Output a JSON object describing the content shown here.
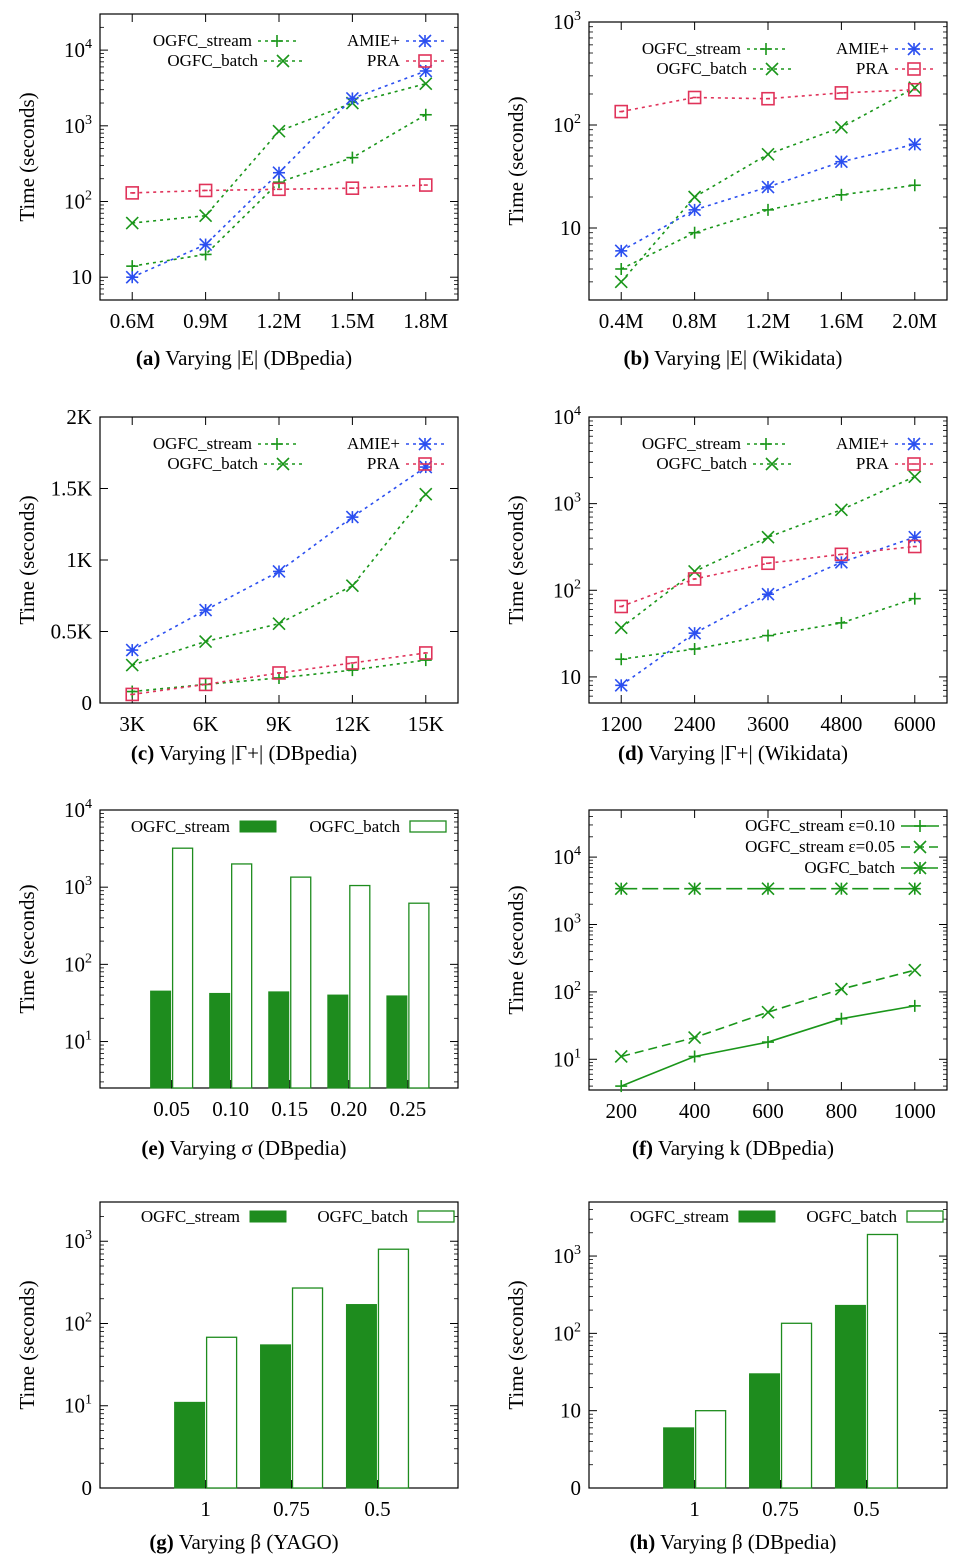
{
  "chart_data": [
    {
      "id": "a",
      "type": "line",
      "scale": "log",
      "ylabel": "Time (seconds)",
      "xlabel": "",
      "categories": [
        "0.6M",
        "0.9M",
        "1.2M",
        "1.5M",
        "1.8M"
      ],
      "yticks": [
        {
          "v": 10,
          "base": "10",
          "exp": ""
        },
        {
          "v": 100,
          "base": "10",
          "exp": "2"
        },
        {
          "v": 1000,
          "base": "10",
          "exp": "3"
        },
        {
          "v": 10000,
          "base": "10",
          "exp": "4"
        }
      ],
      "ylim": [
        5,
        30000
      ],
      "legend": [
        "OGFC_stream",
        "OGFC_batch",
        "AMIE+",
        "PRA"
      ],
      "series": [
        {
          "name": "OGFC_stream",
          "values": [
            14,
            20,
            180,
            380,
            1400
          ]
        },
        {
          "name": "OGFC_batch",
          "values": [
            52,
            65,
            850,
            2000,
            3600
          ]
        },
        {
          "name": "AMIE+",
          "values": [
            10,
            27,
            240,
            2300,
            5300
          ]
        },
        {
          "name": "PRA",
          "values": [
            130,
            140,
            145,
            150,
            165
          ]
        }
      ],
      "caption": {
        "tag": "(a)",
        "text": "Varying |E| (DBpedia)"
      }
    },
    {
      "id": "b",
      "type": "line",
      "scale": "log",
      "ylabel": "Time (seconds)",
      "xlabel": "",
      "categories": [
        "0.4M",
        "0.8M",
        "1.2M",
        "1.6M",
        "2.0M"
      ],
      "yticks": [
        {
          "v": 10,
          "base": "10",
          "exp": ""
        },
        {
          "v": 100,
          "base": "10",
          "exp": "2"
        },
        {
          "v": 1000,
          "base": "10",
          "exp": "3"
        }
      ],
      "ylim": [
        2,
        1000
      ],
      "legend": [
        "OGFC_stream",
        "OGFC_batch",
        "AMIE+",
        "PRA"
      ],
      "series": [
        {
          "name": "OGFC_stream",
          "values": [
            4,
            9,
            15,
            21,
            26
          ]
        },
        {
          "name": "OGFC_batch",
          "values": [
            3,
            20,
            52,
            95,
            230
          ]
        },
        {
          "name": "AMIE+",
          "values": [
            6,
            15,
            25,
            44,
            65
          ]
        },
        {
          "name": "PRA",
          "values": [
            135,
            185,
            180,
            205,
            220
          ]
        }
      ],
      "caption": {
        "tag": "(b)",
        "text": "Varying |E| (Wikidata)"
      }
    },
    {
      "id": "c",
      "type": "line",
      "scale": "linear",
      "ylabel": "Time (seconds)",
      "xlabel": "",
      "categories": [
        "3K",
        "6K",
        "9K",
        "12K",
        "15K"
      ],
      "yticks": [
        {
          "v": 0,
          "base": "0",
          "exp": ""
        },
        {
          "v": 500,
          "base": "0.5K",
          "exp": ""
        },
        {
          "v": 1000,
          "base": "1K",
          "exp": ""
        },
        {
          "v": 1500,
          "base": "1.5K",
          "exp": ""
        },
        {
          "v": 2000,
          "base": "2K",
          "exp": ""
        }
      ],
      "ylim": [
        0,
        2000
      ],
      "legend": [
        "OGFC_stream",
        "OGFC_batch",
        "AMIE+",
        "PRA"
      ],
      "series": [
        {
          "name": "OGFC_stream",
          "values": [
            80,
            130,
            175,
            230,
            300
          ]
        },
        {
          "name": "OGFC_batch",
          "values": [
            265,
            430,
            555,
            820,
            1460
          ]
        },
        {
          "name": "AMIE+",
          "values": [
            370,
            650,
            920,
            1300,
            1650
          ]
        },
        {
          "name": "PRA",
          "values": [
            60,
            130,
            210,
            280,
            350
          ]
        }
      ],
      "caption": {
        "tag": "(c)",
        "text": "Varying |Γ+| (DBpedia)"
      }
    },
    {
      "id": "d",
      "type": "line",
      "scale": "log",
      "ylabel": "Time (seconds)",
      "xlabel": "",
      "categories": [
        "1200",
        "2400",
        "3600",
        "4800",
        "6000"
      ],
      "yticks": [
        {
          "v": 10,
          "base": "10",
          "exp": ""
        },
        {
          "v": 100,
          "base": "10",
          "exp": "2"
        },
        {
          "v": 1000,
          "base": "10",
          "exp": "3"
        },
        {
          "v": 10000,
          "base": "10",
          "exp": "4"
        }
      ],
      "ylim": [
        5,
        10000
      ],
      "legend": [
        "OGFC_stream",
        "OGFC_batch",
        "AMIE+",
        "PRA"
      ],
      "series": [
        {
          "name": "OGFC_stream",
          "values": [
            16,
            21,
            30,
            42,
            80
          ]
        },
        {
          "name": "OGFC_batch",
          "values": [
            37,
            165,
            410,
            850,
            2050
          ]
        },
        {
          "name": "AMIE+",
          "values": [
            8,
            32,
            90,
            210,
            410
          ]
        },
        {
          "name": "PRA",
          "values": [
            65,
            135,
            205,
            260,
            320
          ]
        }
      ],
      "caption": {
        "tag": "(d)",
        "text": "Varying |Γ+| (Wikidata)"
      }
    },
    {
      "id": "e",
      "type": "bar",
      "scale": "log",
      "ylabel": "Time (seconds)",
      "xlabel": "",
      "categories": [
        "0.05",
        "0.10",
        "0.15",
        "0.20",
        "0.25"
      ],
      "yticks": [
        {
          "v": 10,
          "base": "10",
          "exp": "1"
        },
        {
          "v": 100,
          "base": "10",
          "exp": "2"
        },
        {
          "v": 1000,
          "base": "10",
          "exp": "3"
        },
        {
          "v": 10000,
          "base": "10",
          "exp": "4"
        }
      ],
      "ylim": [
        2.5,
        10000
      ],
      "legend": [
        "OGFC_stream",
        "OGFC_batch"
      ],
      "series": [
        {
          "name": "OGFC_stream",
          "values": [
            45,
            42,
            44,
            40,
            39
          ]
        },
        {
          "name": "OGFC_batch",
          "values": [
            3200,
            2000,
            1350,
            1050,
            620
          ]
        }
      ],
      "caption": {
        "tag": "(e)",
        "text": "Varying σ (DBpedia)"
      }
    },
    {
      "id": "f",
      "type": "line",
      "scale": "log",
      "ylabel": "Time (seconds)",
      "xlabel": "",
      "categories": [
        "200",
        "400",
        "600",
        "800",
        "1000"
      ],
      "yticks": [
        {
          "v": 10,
          "base": "10",
          "exp": "1"
        },
        {
          "v": 100,
          "base": "10",
          "exp": "2"
        },
        {
          "v": 1000,
          "base": "10",
          "exp": "3"
        },
        {
          "v": 10000,
          "base": "10",
          "exp": "4"
        }
      ],
      "ylim": [
        3.5,
        50000
      ],
      "legend": [
        "OGFC_stream ε=0.10",
        "OGFC_stream ε=0.05",
        "OGFC_batch"
      ],
      "series": [
        {
          "name": "OGFC_stream ε=0.10",
          "values": [
            4,
            11,
            18,
            40,
            62
          ]
        },
        {
          "name": "OGFC_stream ε=0.05",
          "values": [
            11,
            21,
            50,
            110,
            210
          ]
        },
        {
          "name": "OGFC_batch",
          "values": [
            3400,
            3400,
            3400,
            3400,
            3400
          ]
        }
      ],
      "caption": {
        "tag": "(f)",
        "text": "Varying k (DBpedia)"
      }
    },
    {
      "id": "g",
      "type": "bar",
      "scale": "log",
      "ylabel": "Time (seconds)",
      "xlabel": "",
      "categories": [
        "1",
        "0.75",
        "0.5"
      ],
      "yticks": [
        {
          "v": 1,
          "base": "0",
          "exp": ""
        },
        {
          "v": 10,
          "base": "10",
          "exp": "1"
        },
        {
          "v": 100,
          "base": "10",
          "exp": "2"
        },
        {
          "v": 1000,
          "base": "10",
          "exp": "3"
        }
      ],
      "ylim": [
        1,
        3000
      ],
      "legend": [
        "OGFC_stream",
        "OGFC_batch"
      ],
      "series": [
        {
          "name": "OGFC_stream",
          "values": [
            11,
            55,
            170
          ]
        },
        {
          "name": "OGFC_batch",
          "values": [
            68,
            270,
            800
          ]
        }
      ],
      "caption": {
        "tag": "(g)",
        "text": "Varying β (YAGO)"
      }
    },
    {
      "id": "h",
      "type": "bar",
      "scale": "log",
      "ylabel": "Time (seconds)",
      "xlabel": "",
      "categories": [
        "1",
        "0.75",
        "0.5"
      ],
      "yticks": [
        {
          "v": 1,
          "base": "0",
          "exp": ""
        },
        {
          "v": 10,
          "base": "10",
          "exp": ""
        },
        {
          "v": 100,
          "base": "10",
          "exp": "2"
        },
        {
          "v": 1000,
          "base": "10",
          "exp": "3"
        }
      ],
      "ylim": [
        1,
        5000
      ],
      "legend": [
        "OGFC_stream",
        "OGFC_batch"
      ],
      "series": [
        {
          "name": "OGFC_stream",
          "values": [
            6,
            30,
            230
          ]
        },
        {
          "name": "OGFC_batch",
          "values": [
            10,
            135,
            1900
          ]
        }
      ],
      "caption": {
        "tag": "(h)",
        "text": "Varying β (DBpedia)"
      }
    }
  ],
  "colors": {
    "OGFC_stream": "#1a961a",
    "OGFC_batch": "#1a961a",
    "AMIE+": "#2b4ff0",
    "PRA": "#e0335a",
    "bar_fill": "#1e8c1e"
  }
}
